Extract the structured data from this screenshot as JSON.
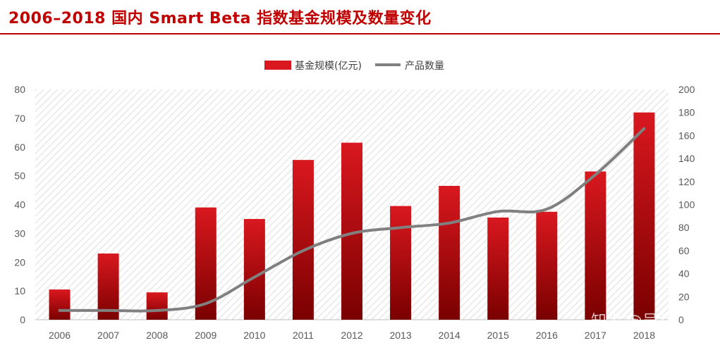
{
  "header": {
    "title": "2006–2018 国内 Smart Beta 指数基金规模及数量变化"
  },
  "watermark": "知乎 @吴吞",
  "colors": {
    "bar_top": "#d9181f",
    "bar_bottom": "#7a0000",
    "line": "#808080",
    "title": "#c00000"
  },
  "chart_data": {
    "type": "bar+line",
    "categories": [
      "2006",
      "2007",
      "2008",
      "2009",
      "2010",
      "2011",
      "2012",
      "2013",
      "2014",
      "2015",
      "2016",
      "2017",
      "2018"
    ],
    "series": [
      {
        "name": "基金规模(亿元)",
        "type": "bar",
        "axis": "left",
        "values": [
          10.5,
          23,
          9.5,
          39,
          35,
          55.5,
          61.5,
          39.5,
          46.5,
          35.5,
          37.5,
          51.5,
          72
        ]
      },
      {
        "name": "产品数量",
        "type": "line",
        "axis": "right",
        "values": [
          8,
          8,
          8,
          14,
          37,
          60,
          75,
          80,
          84,
          94,
          96,
          126,
          166
        ]
      }
    ],
    "y_left": {
      "min": 0,
      "max": 80,
      "ticks": [
        0,
        10,
        20,
        30,
        40,
        50,
        60,
        70,
        80
      ]
    },
    "y_right": {
      "min": 0,
      "max": 200,
      "ticks": [
        0,
        20,
        40,
        60,
        80,
        100,
        120,
        140,
        160,
        180,
        200
      ]
    },
    "legend_position": "top-center",
    "plot_background": "diagonal-hatch"
  }
}
